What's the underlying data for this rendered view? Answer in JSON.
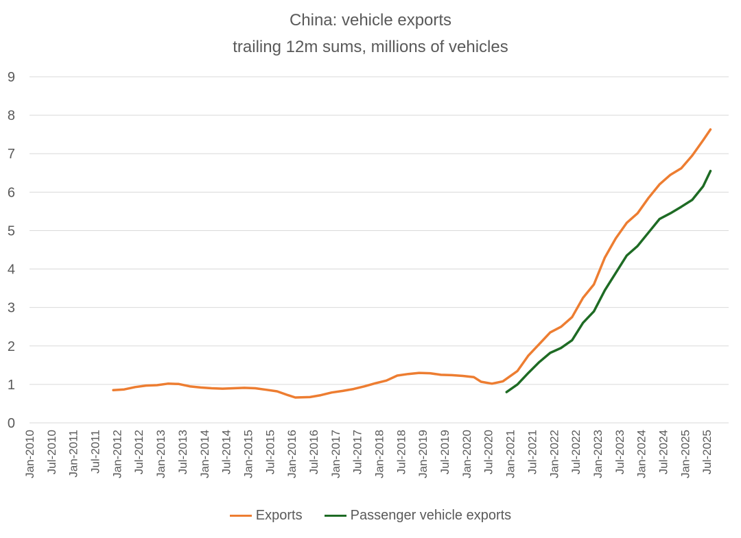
{
  "chart_data": {
    "type": "line",
    "title": "China: vehicle exports",
    "subtitle": "trailing 12m sums, millions of vehicles",
    "xlabel": "",
    "ylabel": "",
    "ylim": [
      0,
      9
    ],
    "yticks": [
      0,
      1,
      2,
      3,
      4,
      5,
      6,
      7,
      8,
      9
    ],
    "xlim": [
      "2010-01",
      "2025-12"
    ],
    "xticks": [
      "Jan-2010",
      "Jul-2010",
      "Jan-2011",
      "Jul-2011",
      "Jan-2012",
      "Jul-2012",
      "Jan-2013",
      "Jul-2013",
      "Jan-2014",
      "Jul-2014",
      "Jan-2015",
      "Jul-2015",
      "Jan-2016",
      "Jul-2016",
      "Jan-2017",
      "Jul-2017",
      "Jan-2018",
      "Jul-2018",
      "Jan-2019",
      "Jul-2019",
      "Jan-2020",
      "Jul-2020",
      "Jan-2021",
      "Jul-2021",
      "Jan-2022",
      "Jul-2022",
      "Jan-2023",
      "Jul-2023",
      "Jan-2024",
      "Jul-2024",
      "Jan-2025",
      "Jul-2025"
    ],
    "grid": "horizontal",
    "legend_position": "bottom",
    "series": [
      {
        "name": "Exports",
        "color": "#ED7D31",
        "points": [
          [
            "2011-12",
            0.85
          ],
          [
            "2012-03",
            0.87
          ],
          [
            "2012-06",
            0.93
          ],
          [
            "2012-09",
            0.97
          ],
          [
            "2012-12",
            0.98
          ],
          [
            "2013-03",
            1.02
          ],
          [
            "2013-06",
            1.01
          ],
          [
            "2013-09",
            0.95
          ],
          [
            "2013-12",
            0.92
          ],
          [
            "2014-03",
            0.9
          ],
          [
            "2014-06",
            0.89
          ],
          [
            "2014-09",
            0.9
          ],
          [
            "2014-12",
            0.91
          ],
          [
            "2015-03",
            0.9
          ],
          [
            "2015-06",
            0.86
          ],
          [
            "2015-09",
            0.82
          ],
          [
            "2015-12",
            0.72
          ],
          [
            "2016-02",
            0.66
          ],
          [
            "2016-06",
            0.67
          ],
          [
            "2016-09",
            0.72
          ],
          [
            "2016-12",
            0.79
          ],
          [
            "2017-03",
            0.83
          ],
          [
            "2017-06",
            0.88
          ],
          [
            "2017-09",
            0.95
          ],
          [
            "2017-12",
            1.03
          ],
          [
            "2018-03",
            1.1
          ],
          [
            "2018-06",
            1.23
          ],
          [
            "2018-09",
            1.27
          ],
          [
            "2018-12",
            1.3
          ],
          [
            "2019-03",
            1.29
          ],
          [
            "2019-06",
            1.25
          ],
          [
            "2019-09",
            1.24
          ],
          [
            "2019-12",
            1.22
          ],
          [
            "2020-03",
            1.19
          ],
          [
            "2020-05",
            1.07
          ],
          [
            "2020-08",
            1.02
          ],
          [
            "2020-11",
            1.08
          ],
          [
            "2021-03",
            1.35
          ],
          [
            "2021-06",
            1.75
          ],
          [
            "2021-09",
            2.05
          ],
          [
            "2021-12",
            2.35
          ],
          [
            "2022-03",
            2.5
          ],
          [
            "2022-06",
            2.75
          ],
          [
            "2022-09",
            3.25
          ],
          [
            "2022-12",
            3.6
          ],
          [
            "2023-03",
            4.3
          ],
          [
            "2023-06",
            4.8
          ],
          [
            "2023-09",
            5.2
          ],
          [
            "2023-12",
            5.45
          ],
          [
            "2024-03",
            5.85
          ],
          [
            "2024-06",
            6.2
          ],
          [
            "2024-09",
            6.45
          ],
          [
            "2024-12",
            6.62
          ],
          [
            "2025-03",
            6.95
          ],
          [
            "2025-06",
            7.35
          ],
          [
            "2025-08",
            7.63
          ]
        ]
      },
      {
        "name": "Passenger vehicle exports",
        "color": "#1E6B24",
        "points": [
          [
            "2020-12",
            0.8
          ],
          [
            "2021-03",
            1.0
          ],
          [
            "2021-06",
            1.3
          ],
          [
            "2021-09",
            1.58
          ],
          [
            "2021-12",
            1.82
          ],
          [
            "2022-03",
            1.95
          ],
          [
            "2022-06",
            2.15
          ],
          [
            "2022-09",
            2.6
          ],
          [
            "2022-12",
            2.9
          ],
          [
            "2023-03",
            3.45
          ],
          [
            "2023-06",
            3.9
          ],
          [
            "2023-09",
            4.35
          ],
          [
            "2023-12",
            4.6
          ],
          [
            "2024-03",
            4.95
          ],
          [
            "2024-06",
            5.3
          ],
          [
            "2024-09",
            5.45
          ],
          [
            "2024-12",
            5.62
          ],
          [
            "2025-03",
            5.8
          ],
          [
            "2025-06",
            6.15
          ],
          [
            "2025-08",
            6.55
          ]
        ]
      }
    ]
  }
}
